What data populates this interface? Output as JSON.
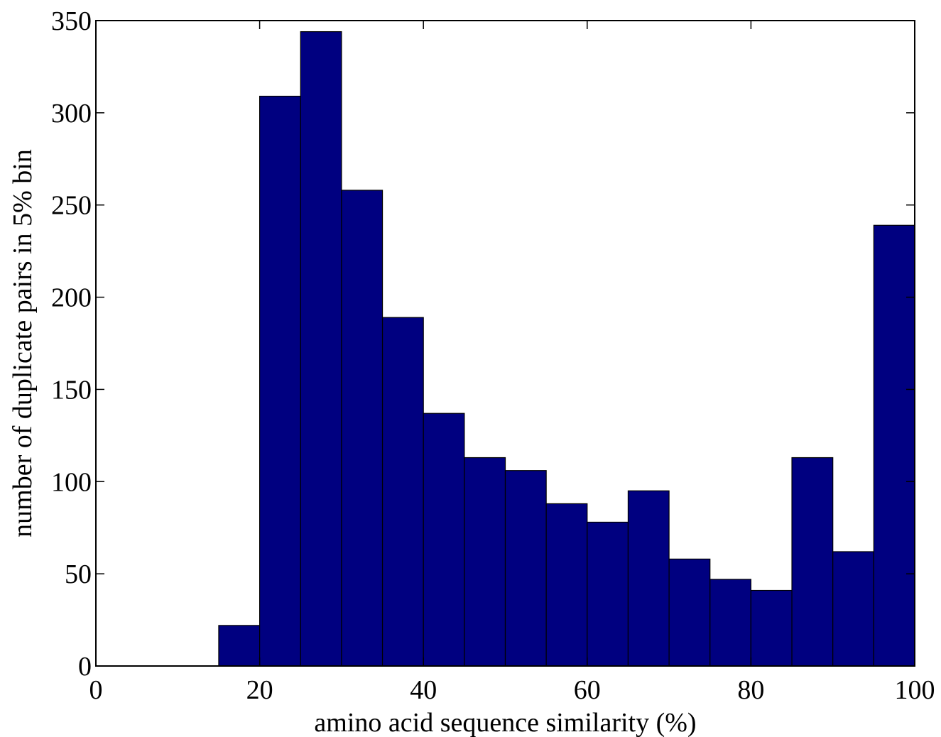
{
  "chart_data": {
    "type": "bar",
    "title": "",
    "xlabel": "amino acid sequence similarity (%)",
    "ylabel": "number of duplicate pairs in 5% bin",
    "xlim": [
      0,
      100
    ],
    "ylim": [
      0,
      350
    ],
    "bin_width": 5,
    "x_ticks": [
      0,
      20,
      40,
      60,
      80,
      100
    ],
    "y_ticks": [
      0,
      50,
      100,
      150,
      200,
      250,
      300,
      350
    ],
    "bins": [
      {
        "x0": 0,
        "x1": 5,
        "value": 0
      },
      {
        "x0": 5,
        "x1": 10,
        "value": 0
      },
      {
        "x0": 10,
        "x1": 15,
        "value": 0
      },
      {
        "x0": 15,
        "x1": 20,
        "value": 22
      },
      {
        "x0": 20,
        "x1": 25,
        "value": 309
      },
      {
        "x0": 25,
        "x1": 30,
        "value": 344
      },
      {
        "x0": 30,
        "x1": 35,
        "value": 258
      },
      {
        "x0": 35,
        "x1": 40,
        "value": 189
      },
      {
        "x0": 40,
        "x1": 45,
        "value": 137
      },
      {
        "x0": 45,
        "x1": 50,
        "value": 113
      },
      {
        "x0": 50,
        "x1": 55,
        "value": 106
      },
      {
        "x0": 55,
        "x1": 60,
        "value": 88
      },
      {
        "x0": 60,
        "x1": 65,
        "value": 78
      },
      {
        "x0": 65,
        "x1": 70,
        "value": 95
      },
      {
        "x0": 70,
        "x1": 75,
        "value": 58
      },
      {
        "x0": 75,
        "x1": 80,
        "value": 47
      },
      {
        "x0": 80,
        "x1": 85,
        "value": 41
      },
      {
        "x0": 85,
        "x1": 90,
        "value": 113
      },
      {
        "x0": 90,
        "x1": 95,
        "value": 62
      },
      {
        "x0": 95,
        "x1": 100,
        "value": 239
      }
    ],
    "bar_color": "#000080",
    "edge_color": "#000000",
    "grid": false
  }
}
